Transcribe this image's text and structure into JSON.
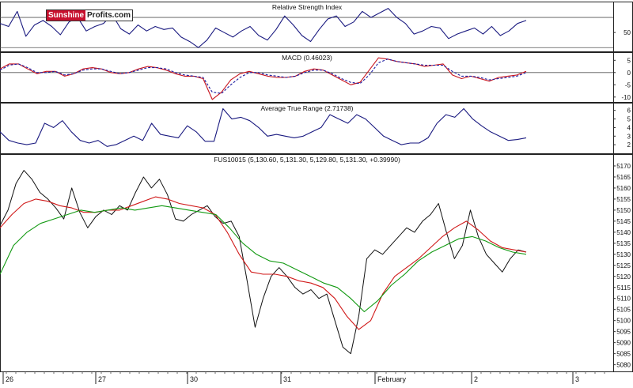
{
  "logo": {
    "part1": "Sunshine",
    "part2": "Profits.com"
  },
  "x_axis": {
    "labels": [
      "26",
      "27",
      "30",
      "31",
      "February",
      "2",
      "3"
    ]
  },
  "chart_data": [
    {
      "type": "line",
      "title": "Relative Strength Index",
      "ylim": [
        25,
        90
      ],
      "yticks": [
        "50"
      ],
      "reference_lines": [
        30,
        70
      ],
      "series": [
        {
          "values": [
            62,
            58,
            78,
            45,
            60,
            66,
            58,
            47,
            64,
            70,
            52,
            58,
            62,
            74,
            55,
            48,
            60,
            52,
            58,
            54,
            56,
            44,
            38,
            30,
            40,
            56,
            50,
            44,
            52,
            58,
            46,
            40,
            54,
            72,
            60,
            46,
            38,
            54,
            68,
            72,
            58,
            64,
            78,
            70,
            76,
            82,
            70,
            62,
            48,
            52,
            58,
            56,
            42,
            48,
            52,
            56,
            48,
            58,
            46,
            52,
            62,
            66
          ]
        }
      ]
    },
    {
      "type": "line",
      "title": "MACD (0.46023)",
      "ylim": [
        -12,
        8
      ],
      "yticks": [
        "5",
        "0",
        "-5",
        "-10"
      ],
      "series": [
        {
          "values": [
            1.5,
            3.5,
            3.5,
            1.5,
            -0.5,
            0.5,
            0.5,
            -1.5,
            -0.5,
            1.5,
            2,
            1.5,
            0,
            -0.5,
            0,
            1.5,
            2.5,
            2,
            1,
            -0.5,
            -1.5,
            -1.5,
            -2.5,
            -11,
            -8,
            -3,
            -0.5,
            0.5,
            -0.5,
            -1.5,
            -2,
            -2,
            -1.5,
            0.5,
            1.5,
            1,
            -1,
            -3,
            -5,
            -4,
            1,
            6,
            5.5,
            4.5,
            4,
            3.5,
            2.5,
            3,
            3.5,
            -1,
            -2.5,
            -1.5,
            -2.5,
            -3.5,
            -2,
            -1.5,
            -1,
            0.5
          ]
        },
        {
          "values": [
            1,
            3,
            3.5,
            2,
            0,
            0,
            0.5,
            -1,
            -0.5,
            1,
            1.5,
            1.5,
            0.5,
            -0.5,
            0,
            1,
            2,
            2,
            1.5,
            0,
            -1,
            -1.5,
            -2,
            -8,
            -8.5,
            -5,
            -2,
            0,
            0,
            -1,
            -1.5,
            -2,
            -1.5,
            0,
            1,
            1,
            -0.5,
            -2.5,
            -4,
            -4.5,
            -1,
            4,
            5.5,
            4.5,
            4,
            3.5,
            3,
            3,
            3,
            0.5,
            -1.5,
            -1.5,
            -2,
            -3,
            -2.5,
            -2,
            -1.5,
            0
          ]
        }
      ]
    },
    {
      "type": "line",
      "title": "Average True Range (2.71738)",
      "ylim": [
        1,
        6.8
      ],
      "yticks": [
        "6",
        "5",
        "4",
        "3",
        "2"
      ],
      "series": [
        {
          "values": [
            3.5,
            2.5,
            2.2,
            2,
            2.2,
            4.5,
            4,
            4.8,
            3.5,
            2.5,
            2.2,
            2.5,
            1.8,
            2,
            2.5,
            3,
            2.5,
            4.5,
            3.2,
            3,
            2.8,
            4.2,
            3.5,
            2.4,
            2.4,
            6.2,
            5,
            5.2,
            4.8,
            4,
            3,
            3.2,
            3,
            2.8,
            3,
            3.5,
            4,
            5.5,
            5,
            4.5,
            5.5,
            5,
            4,
            3,
            2.5,
            2,
            2.2,
            2.2,
            2.8,
            4.5,
            5.5,
            5.2,
            6.2,
            5,
            4.2,
            3.5,
            3,
            2.5,
            2.6,
            2.8
          ]
        }
      ]
    },
    {
      "type": "line",
      "title": "FUS10015 (5,130.60, 5,131.30, 5,129.80, 5,131.30, +0.39990)",
      "ylim": [
        5077,
        5175
      ],
      "yticks": [
        "5170",
        "5165",
        "5160",
        "5155",
        "5150",
        "5145",
        "5140",
        "5135",
        "5130",
        "5125",
        "5120",
        "5115",
        "5110",
        "5105",
        "5100",
        "5095",
        "5090",
        "5085",
        "5080"
      ],
      "series": [
        {
          "values": [
            5143,
            5150,
            5162,
            5168,
            5164,
            5158,
            5155,
            5151,
            5146,
            5160,
            5149,
            5142,
            5147,
            5150,
            5148,
            5152,
            5150,
            5158,
            5165,
            5160,
            5164,
            5157,
            5146,
            5145,
            5148,
            5150,
            5152,
            5147,
            5144,
            5145,
            5138,
            5118,
            5097,
            5110,
            5120,
            5124,
            5120,
            5115,
            5112,
            5114,
            5110,
            5112,
            5100,
            5088,
            5085,
            5102,
            5128,
            5132,
            5130,
            5134,
            5138,
            5142,
            5140,
            5145,
            5148,
            5153,
            5140,
            5128,
            5134,
            5150,
            5138,
            5130,
            5126,
            5122,
            5128,
            5132,
            5131
          ]
        },
        {
          "values": [
            5142,
            5148,
            5153,
            5155,
            5154,
            5152,
            5151,
            5149,
            5149,
            5150,
            5150,
            5152,
            5154,
            5156,
            5155,
            5153,
            5152,
            5151,
            5148,
            5140,
            5130,
            5122,
            5121,
            5121,
            5120,
            5118,
            5117,
            5115,
            5110,
            5102,
            5096,
            5100,
            5112,
            5120,
            5124,
            5128,
            5133,
            5138,
            5142,
            5145,
            5141,
            5136,
            5133,
            5132,
            5131
          ]
        },
        {
          "values": [
            5121,
            5134,
            5140,
            5144,
            5146,
            5148,
            5150,
            5149,
            5150,
            5151,
            5150,
            5151,
            5152,
            5151,
            5150,
            5149,
            5148,
            5142,
            5135,
            5130,
            5127,
            5126,
            5123,
            5120,
            5117,
            5115,
            5110,
            5104,
            5109,
            5116,
            5121,
            5127,
            5131,
            5134,
            5137,
            5138,
            5136,
            5133,
            5131,
            5130
          ]
        }
      ]
    }
  ]
}
